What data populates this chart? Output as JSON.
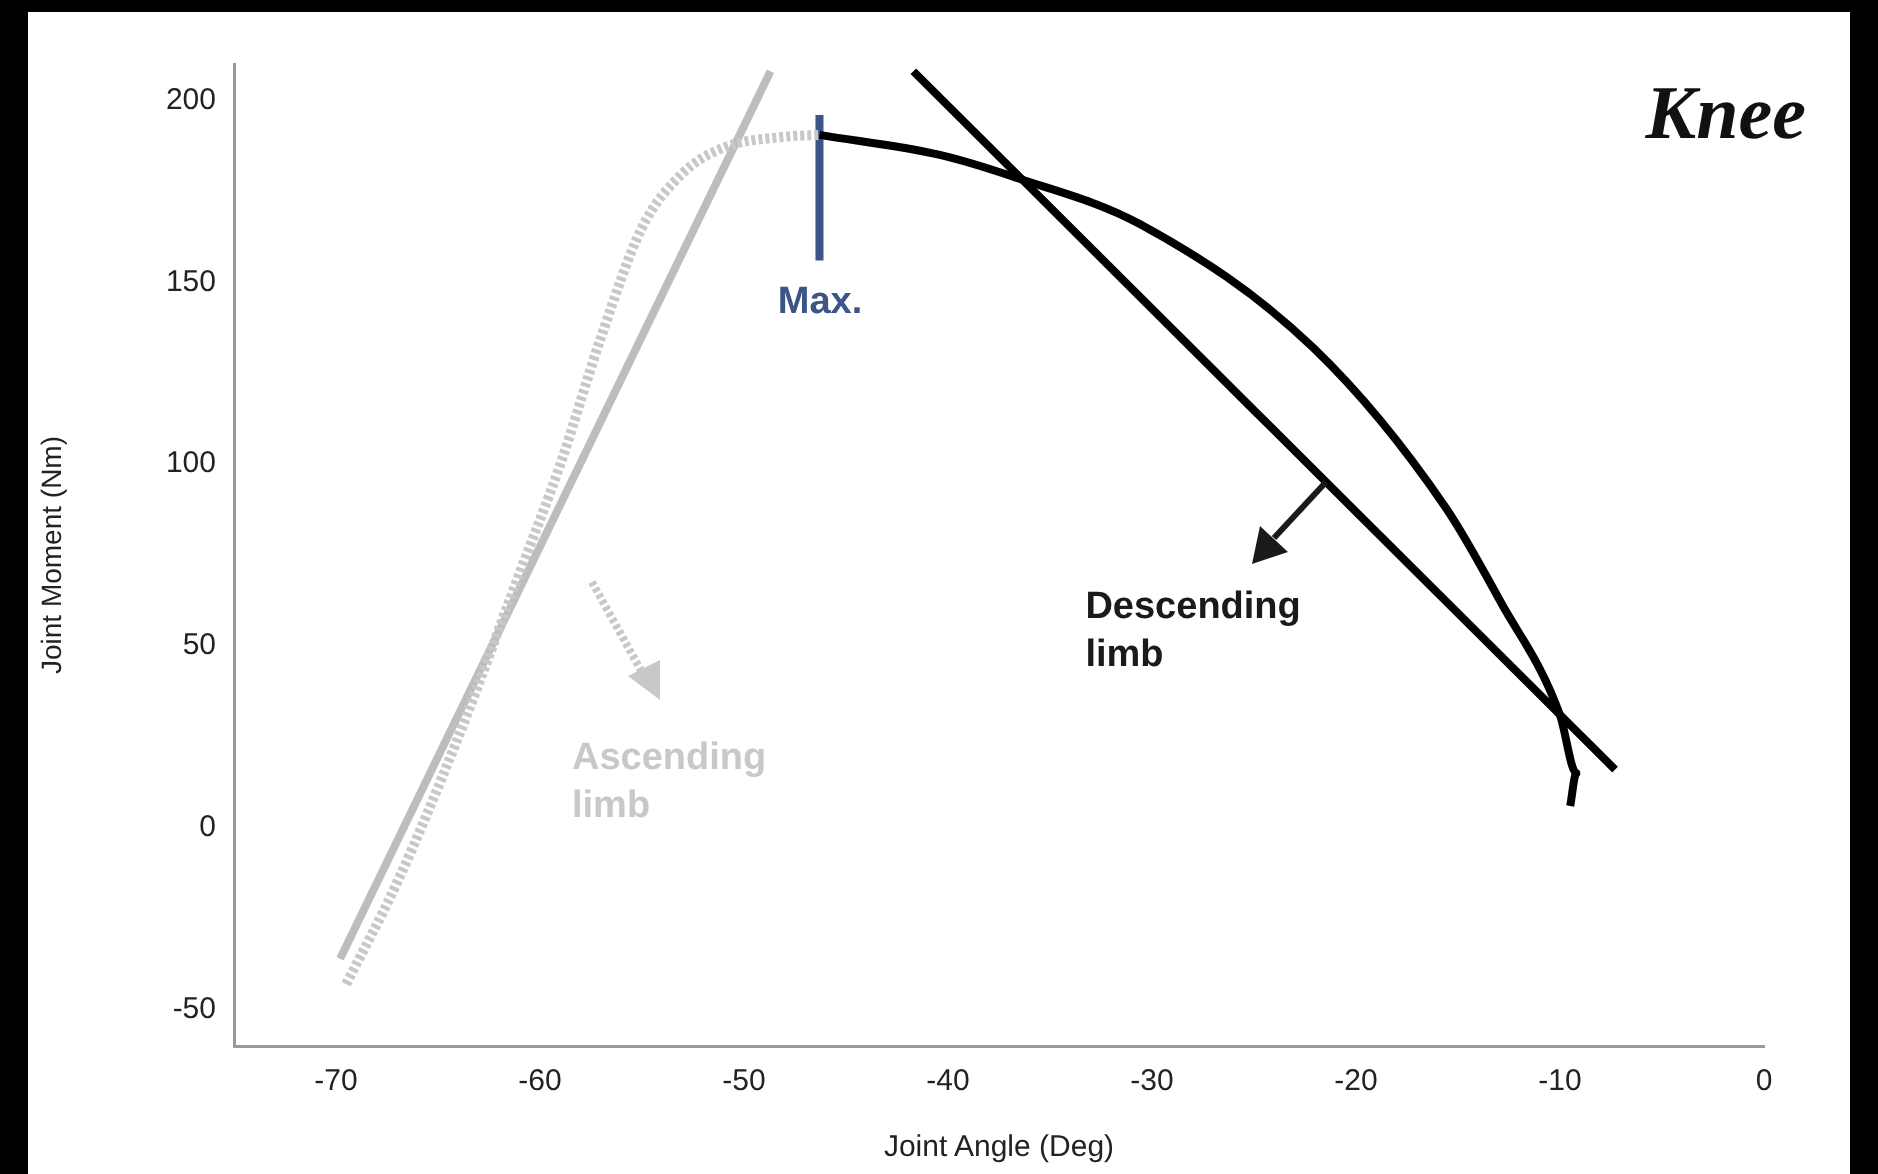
{
  "chart_data": {
    "type": "line",
    "title": "Knee",
    "xlabel": "Joint Angle (Deg)",
    "ylabel": "Joint Moment (Nm)",
    "xlim": [
      -75,
      0
    ],
    "xticks": [
      -70,
      -60,
      -50,
      -40,
      -30,
      -20,
      -10,
      0
    ],
    "ylim": [
      -60,
      210
    ],
    "yticks": [
      -50,
      0,
      50,
      100,
      150,
      200
    ],
    "grid": false,
    "legend": false,
    "marker": "none",
    "series": [
      {
        "color": "#c8c8c8",
        "line_style": "dotted",
        "x": [
          -69.5,
          -67,
          -64,
          -61,
          -59,
          -57,
          -55,
          -53,
          -51,
          -48,
          -46.3
        ],
        "values": [
          -43,
          -15,
          25,
          70,
          100,
          135,
          165,
          180,
          187,
          190,
          190.5
        ]
      },
      {
        "color": "#bdbdbd",
        "line_style": "solid",
        "x": [
          -69.8,
          -48.7
        ],
        "values": [
          -36,
          208
        ]
      },
      {
        "color": "#000000",
        "line_style": "solid",
        "x": [
          -46.3,
          -40.4,
          -36.8,
          -30.6,
          -22.1,
          -15.6,
          -12.9,
          -10,
          -9.2,
          -9.5
        ],
        "values": [
          190.5,
          185,
          179,
          166,
          132,
          88,
          62,
          31,
          15,
          6
        ]
      },
      {
        "color": "#000000",
        "line_style": "solid",
        "x": [
          -41.7,
          -7.3
        ],
        "values": [
          208,
          16
        ]
      },
      {
        "color": "#3d5487",
        "line_style": "solid",
        "x": [
          -46.3,
          -46.3
        ],
        "values": [
          196,
          156
        ]
      }
    ],
    "annotations": [
      "Max.",
      "Ascending limb",
      {
        "text": "Descending limb",
        "x": -21.5,
        "y": 95
      }
    ]
  }
}
